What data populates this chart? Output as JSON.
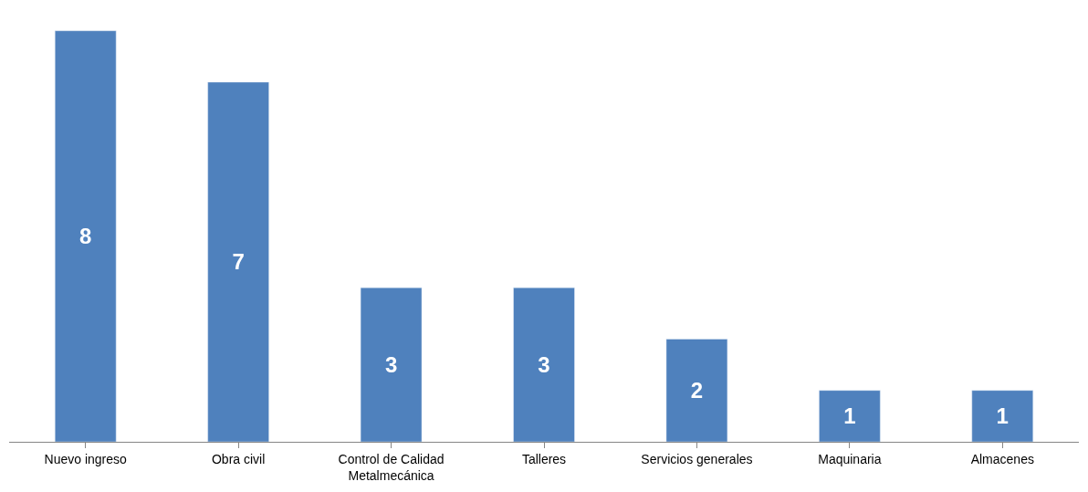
{
  "chart_data": {
    "type": "bar",
    "categories": [
      "Nuevo ingreso",
      "Obra civil",
      "Control de Calidad Metalmecánica",
      "Talleres",
      "Servicios generales",
      "Maquinaria",
      "Almacenes"
    ],
    "values": [
      8,
      7,
      3,
      3,
      2,
      1,
      1
    ],
    "color": "#4f81bd",
    "data_labels": true,
    "tick_labels": "x"
  }
}
